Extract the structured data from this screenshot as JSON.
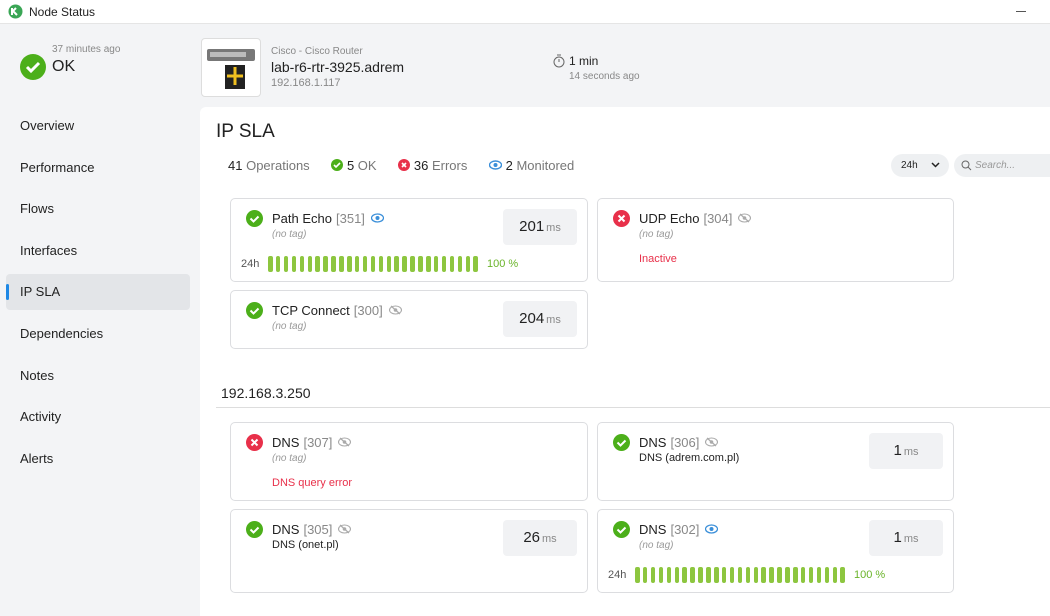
{
  "window": {
    "title": "Node Status"
  },
  "status": {
    "time": "37 minutes ago",
    "label": "OK"
  },
  "nav": [
    "Overview",
    "Performance",
    "Flows",
    "Interfaces",
    "IP SLA",
    "Dependencies",
    "Notes",
    "Activity",
    "Alerts"
  ],
  "device": {
    "vendor": "Cisco - Cisco Router",
    "name": "lab-r6-rtr-3925.adrem",
    "ip": "192.168.1.117",
    "interval": "1 min",
    "updated": "14 seconds ago"
  },
  "page": {
    "title": "IP SLA",
    "summary": {
      "operations": 41,
      "operations_label": "Operations",
      "ok": 5,
      "ok_label": "OK",
      "errors": 36,
      "errors_label": "Errors",
      "monitored": 2,
      "monitored_label": "Monitored"
    },
    "range": "24h",
    "search_placeholder": "Search..."
  },
  "cards": [
    {
      "name": "Path Echo",
      "id": "[351]",
      "status": "ok",
      "monitored": true,
      "tag": "(no tag)",
      "value": 201,
      "unit": "ms",
      "history_label": "24h",
      "availability": "100 %"
    },
    {
      "name": "UDP Echo",
      "id": "[304]",
      "status": "error",
      "monitored": false,
      "tag": "(no tag)",
      "error": "Inactive"
    },
    {
      "name": "TCP Connect",
      "id": "[300]",
      "status": "ok",
      "monitored": false,
      "tag": "(no tag)",
      "value": 204,
      "unit": "ms"
    }
  ],
  "groups": [
    {
      "title": "192.168.3.250",
      "cards": [
        {
          "name": "DNS",
          "id": "[307]",
          "status": "error",
          "monitored": false,
          "tag": "(no tag)",
          "error": "DNS query error"
        },
        {
          "name": "DNS",
          "id": "[306]",
          "status": "ok",
          "monitored": false,
          "description": "DNS (adrem.com.pl)",
          "value": 1,
          "unit": "ms"
        },
        {
          "name": "DNS",
          "id": "[305]",
          "status": "ok",
          "monitored": false,
          "description": "DNS (onet.pl)",
          "value": 26,
          "unit": "ms"
        },
        {
          "name": "DNS",
          "id": "[302]",
          "status": "ok",
          "monitored": true,
          "tag": "(no tag)",
          "value": 1,
          "unit": "ms",
          "history_label": "24h",
          "availability": "100 %"
        }
      ]
    }
  ]
}
